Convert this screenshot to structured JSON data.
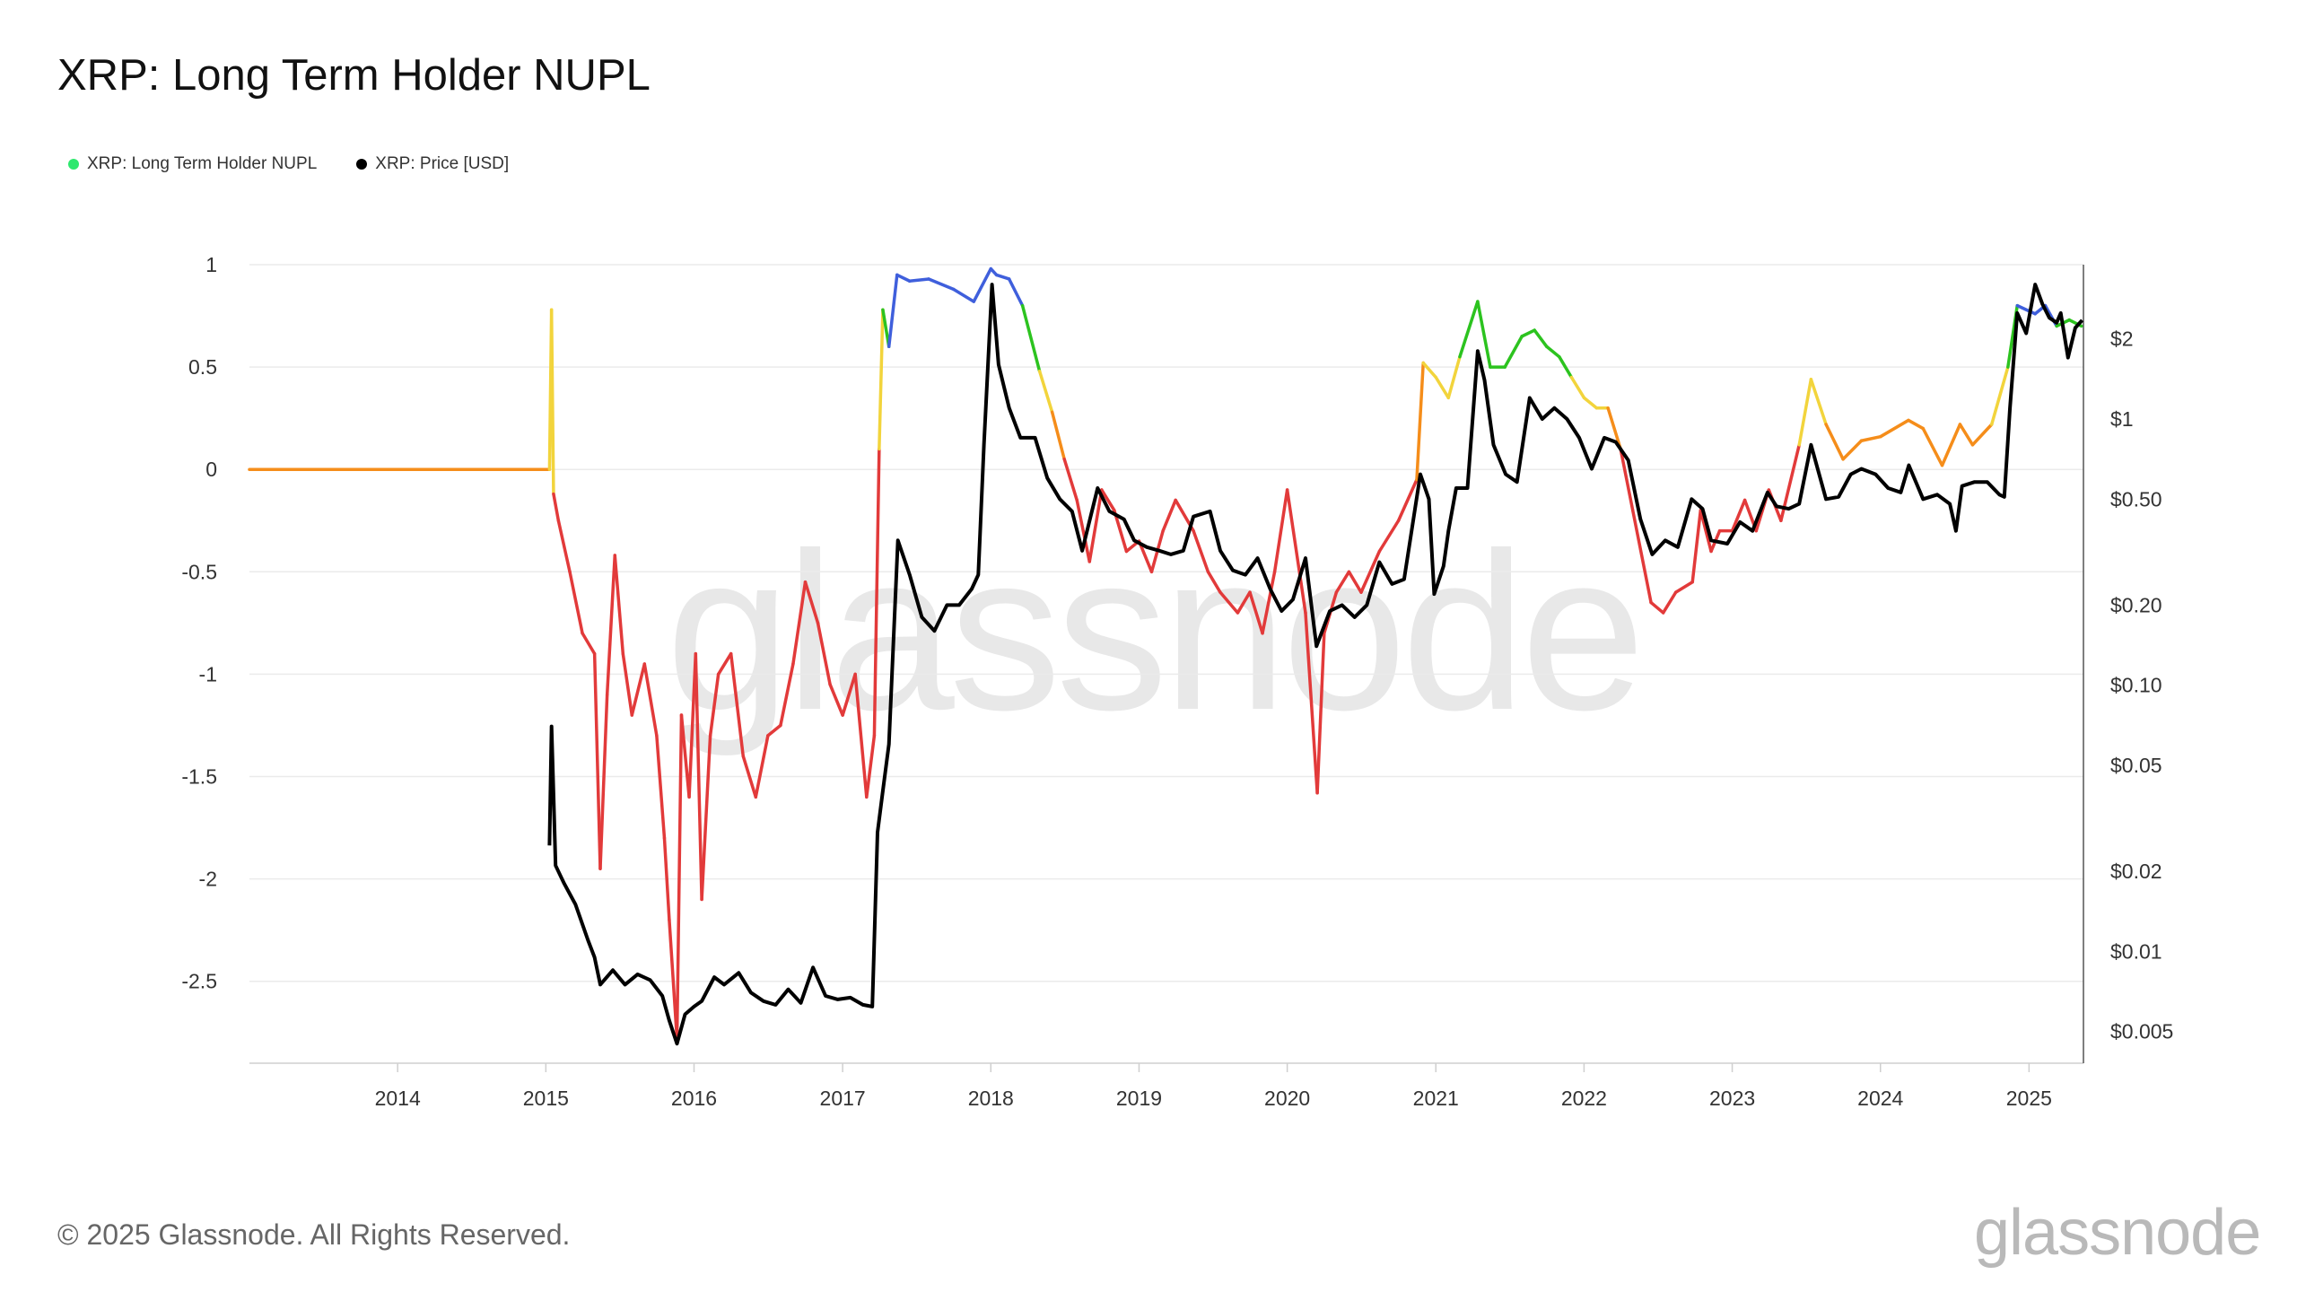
{
  "title": "XRP: Long Term Holder NUPL",
  "footer": {
    "copyright": "© 2025 Glassnode. All Rights Reserved.",
    "brand": "glassnode",
    "watermark": "glassnode"
  },
  "chart_data": {
    "type": "line",
    "title": "XRP: Long Term Holder NUPL",
    "legend": {
      "position": "top-left",
      "entries": [
        {
          "label": "XRP: Long Term Holder NUPL",
          "color": "#2ee86e"
        },
        {
          "label": "XRP: Price [USD]",
          "color": "#000000"
        }
      ]
    },
    "grid": true,
    "x_axis": {
      "type": "date",
      "range": [
        "2013-01-01",
        "2025-05-15"
      ],
      "ticks": [
        "2014",
        "2015",
        "2016",
        "2017",
        "2018",
        "2019",
        "2020",
        "2021",
        "2022",
        "2023",
        "2024",
        "2025"
      ]
    },
    "y_left": {
      "range": [
        -2.9,
        1.0
      ],
      "ticks": [
        1,
        0.5,
        0,
        -0.5,
        -1,
        -1.5,
        -2,
        -2.5
      ],
      "tick_labels": [
        "1",
        "0.5",
        "0",
        "-0.5",
        "-1",
        "-1.5",
        "-2",
        "-2.5"
      ]
    },
    "y_right": {
      "scale": "log",
      "range": [
        0.0038,
        3.8
      ],
      "ticks": [
        2,
        1,
        0.5,
        0.2,
        0.1,
        0.05,
        0.02,
        0.01,
        0.005
      ],
      "tick_labels": [
        "$2",
        "$1",
        "$0.50",
        "$0.20",
        "$0.10",
        "$0.05",
        "$0.02",
        "$0.01",
        "$0.005"
      ]
    },
    "nupl_color_bands": [
      {
        "min": 0.75,
        "color": "#3f5fdc"
      },
      {
        "min": 0.5,
        "color": "#2cc31f"
      },
      {
        "min": 0.25,
        "color": "#f2d43c"
      },
      {
        "min": 0.0,
        "color": "#f58d1a"
      },
      {
        "min": -99,
        "color": "#e23a3a"
      }
    ],
    "series": [
      {
        "name": "XRP: Long Term Holder NUPL",
        "axis": "left",
        "x": [
          "2013-01-01",
          "2014-06-01",
          "2015-01-10",
          "2015-01-15",
          "2015-01-20",
          "2015-02-01",
          "2015-03-01",
          "2015-04-01",
          "2015-05-01",
          "2015-05-15",
          "2015-06-01",
          "2015-06-20",
          "2015-07-10",
          "2015-08-01",
          "2015-09-01",
          "2015-10-01",
          "2015-10-20",
          "2015-11-01",
          "2015-11-20",
          "2015-12-01",
          "2015-12-20",
          "2016-01-05",
          "2016-01-20",
          "2016-02-10",
          "2016-03-01",
          "2016-04-01",
          "2016-05-01",
          "2016-06-01",
          "2016-07-01",
          "2016-08-01",
          "2016-09-01",
          "2016-10-01",
          "2016-11-01",
          "2016-12-01",
          "2017-01-01",
          "2017-02-01",
          "2017-03-01",
          "2017-03-20",
          "2017-04-01",
          "2017-04-10",
          "2017-04-25",
          "2017-05-15",
          "2017-06-15",
          "2017-08-01",
          "2017-10-01",
          "2017-11-20",
          "2018-01-01",
          "2018-01-15",
          "2018-02-15",
          "2018-03-20",
          "2018-05-01",
          "2018-06-01",
          "2018-07-01",
          "2018-08-01",
          "2018-09-01",
          "2018-10-01",
          "2018-11-01",
          "2018-12-01",
          "2019-01-01",
          "2019-02-01",
          "2019-03-01",
          "2019-04-01",
          "2019-05-15",
          "2019-06-20",
          "2019-07-20",
          "2019-09-01",
          "2019-10-01",
          "2019-11-01",
          "2019-12-01",
          "2020-01-01",
          "2020-02-15",
          "2020-03-15",
          "2020-04-01",
          "2020-05-01",
          "2020-06-01",
          "2020-07-01",
          "2020-08-15",
          "2020-10-01",
          "2020-11-15",
          "2020-12-01",
          "2021-01-01",
          "2021-02-01",
          "2021-03-01",
          "2021-04-14",
          "2021-05-15",
          "2021-06-20",
          "2021-08-01",
          "2021-09-01",
          "2021-10-01",
          "2021-11-01",
          "2021-12-01",
          "2022-01-01",
          "2022-02-01",
          "2022-03-01",
          "2022-04-01",
          "2022-05-01",
          "2022-06-15",
          "2022-07-15",
          "2022-08-15",
          "2022-09-25",
          "2022-10-15",
          "2022-11-10",
          "2022-12-01",
          "2023-01-01",
          "2023-02-01",
          "2023-03-01",
          "2023-04-01",
          "2023-05-01",
          "2023-06-15",
          "2023-07-14",
          "2023-08-20",
          "2023-10-01",
          "2023-11-15",
          "2024-01-01",
          "2024-03-10",
          "2024-04-15",
          "2024-06-01",
          "2024-07-15",
          "2024-08-15",
          "2024-10-01",
          "2024-11-10",
          "2024-12-03",
          "2025-01-16",
          "2025-02-10",
          "2025-03-10",
          "2025-04-10",
          "2025-05-10"
        ],
        "values": [
          0,
          0,
          0,
          0.78,
          -0.12,
          -0.25,
          -0.5,
          -0.8,
          -0.9,
          -1.95,
          -1.1,
          -0.42,
          -0.9,
          -1.2,
          -0.95,
          -1.3,
          -1.8,
          -2.2,
          -2.78,
          -1.2,
          -1.6,
          -0.9,
          -2.1,
          -1.3,
          -1.0,
          -0.9,
          -1.4,
          -1.6,
          -1.3,
          -1.25,
          -0.95,
          -0.55,
          -0.75,
          -1.05,
          -1.2,
          -1.0,
          -1.6,
          -1.3,
          0.1,
          0.78,
          0.6,
          0.95,
          0.92,
          0.93,
          0.88,
          0.82,
          0.98,
          0.95,
          0.93,
          0.8,
          0.48,
          0.28,
          0.05,
          -0.15,
          -0.45,
          -0.1,
          -0.2,
          -0.4,
          -0.35,
          -0.5,
          -0.3,
          -0.15,
          -0.3,
          -0.5,
          -0.6,
          -0.7,
          -0.6,
          -0.8,
          -0.5,
          -0.1,
          -0.7,
          -1.58,
          -0.8,
          -0.6,
          -0.5,
          -0.6,
          -0.4,
          -0.25,
          -0.05,
          0.52,
          0.45,
          0.35,
          0.55,
          0.82,
          0.5,
          0.5,
          0.65,
          0.68,
          0.6,
          0.55,
          0.45,
          0.35,
          0.3,
          0.3,
          0.1,
          -0.2,
          -0.65,
          -0.7,
          -0.6,
          -0.55,
          -0.2,
          -0.4,
          -0.3,
          -0.3,
          -0.15,
          -0.3,
          -0.1,
          -0.25,
          0.12,
          0.44,
          0.22,
          0.05,
          0.14,
          0.16,
          0.24,
          0.2,
          0.02,
          0.22,
          0.12,
          0.22,
          0.5,
          0.8,
          0.76,
          0.8,
          0.7,
          0.73,
          0.7
        ]
      },
      {
        "name": "XRP: Price [USD]",
        "axis": "right",
        "x": [
          "2015-01-10",
          "2015-01-15",
          "2015-01-25",
          "2015-02-15",
          "2015-03-15",
          "2015-04-15",
          "2015-05-01",
          "2015-05-15",
          "2015-06-15",
          "2015-07-15",
          "2015-08-15",
          "2015-09-15",
          "2015-10-15",
          "2015-11-01",
          "2015-11-20",
          "2015-12-10",
          "2016-01-01",
          "2016-01-20",
          "2016-02-20",
          "2016-03-15",
          "2016-04-20",
          "2016-05-20",
          "2016-06-20",
          "2016-07-20",
          "2016-08-20",
          "2016-09-20",
          "2016-10-20",
          "2016-11-20",
          "2016-12-20",
          "2017-01-20",
          "2017-02-20",
          "2017-03-15",
          "2017-03-28",
          "2017-04-10",
          "2017-04-25",
          "2017-05-17",
          "2017-06-15",
          "2017-07-15",
          "2017-08-15",
          "2017-09-15",
          "2017-10-15",
          "2017-11-15",
          "2017-12-01",
          "2017-12-15",
          "2018-01-04",
          "2018-01-20",
          "2018-02-15",
          "2018-03-15",
          "2018-04-20",
          "2018-05-20",
          "2018-06-20",
          "2018-07-20",
          "2018-08-14",
          "2018-09-21",
          "2018-10-20",
          "2018-11-25",
          "2018-12-20",
          "2019-01-20",
          "2019-02-20",
          "2019-03-20",
          "2019-04-20",
          "2019-05-15",
          "2019-06-25",
          "2019-07-20",
          "2019-08-20",
          "2019-09-20",
          "2019-10-20",
          "2019-11-20",
          "2019-12-18",
          "2020-01-15",
          "2020-02-15",
          "2020-03-13",
          "2020-04-15",
          "2020-05-15",
          "2020-06-15",
          "2020-07-15",
          "2020-08-15",
          "2020-09-15",
          "2020-10-15",
          "2020-11-24",
          "2020-12-15",
          "2020-12-28",
          "2021-01-20",
          "2021-02-01",
          "2021-02-20",
          "2021-03-20",
          "2021-04-14",
          "2021-05-01",
          "2021-05-23",
          "2021-06-22",
          "2021-07-20",
          "2021-08-20",
          "2021-09-20",
          "2021-10-20",
          "2021-11-20",
          "2021-12-20",
          "2022-01-20",
          "2022-02-20",
          "2022-03-20",
          "2022-04-20",
          "2022-05-20",
          "2022-06-18",
          "2022-07-20",
          "2022-08-20",
          "2022-09-23",
          "2022-10-20",
          "2022-11-10",
          "2022-12-20",
          "2023-01-20",
          "2023-02-20",
          "2023-03-29",
          "2023-04-20",
          "2023-05-20",
          "2023-06-15",
          "2023-07-14",
          "2023-08-20",
          "2023-09-20",
          "2023-10-20",
          "2023-11-15",
          "2023-12-20",
          "2024-01-20",
          "2024-02-20",
          "2024-03-11",
          "2024-04-15",
          "2024-05-20",
          "2024-06-20",
          "2024-07-05",
          "2024-07-20",
          "2024-08-20",
          "2024-09-20",
          "2024-10-20",
          "2024-11-01",
          "2024-11-15",
          "2024-12-03",
          "2024-12-25",
          "2025-01-16",
          "2025-02-03",
          "2025-02-20",
          "2025-03-10",
          "2025-03-20",
          "2025-04-07",
          "2025-04-25",
          "2025-05-12"
        ],
        "values": [
          0.025,
          0.07,
          0.021,
          0.018,
          0.015,
          0.011,
          0.0095,
          0.0075,
          0.0085,
          0.0075,
          0.0082,
          0.0078,
          0.0068,
          0.0055,
          0.0045,
          0.0058,
          0.0062,
          0.0065,
          0.008,
          0.0075,
          0.0083,
          0.007,
          0.0065,
          0.0063,
          0.0072,
          0.0064,
          0.0087,
          0.0068,
          0.0066,
          0.0067,
          0.0063,
          0.0062,
          0.028,
          0.04,
          0.06,
          0.35,
          0.26,
          0.18,
          0.16,
          0.2,
          0.2,
          0.23,
          0.26,
          0.8,
          3.2,
          1.6,
          1.1,
          0.85,
          0.85,
          0.6,
          0.5,
          0.45,
          0.32,
          0.55,
          0.45,
          0.42,
          0.35,
          0.33,
          0.32,
          0.31,
          0.32,
          0.43,
          0.45,
          0.32,
          0.27,
          0.26,
          0.3,
          0.23,
          0.19,
          0.21,
          0.3,
          0.14,
          0.19,
          0.2,
          0.18,
          0.2,
          0.29,
          0.24,
          0.25,
          0.62,
          0.5,
          0.22,
          0.28,
          0.38,
          0.55,
          0.55,
          1.8,
          1.4,
          0.8,
          0.62,
          0.58,
          1.2,
          1.0,
          1.1,
          1.0,
          0.85,
          0.65,
          0.85,
          0.82,
          0.7,
          0.42,
          0.31,
          0.35,
          0.33,
          0.5,
          0.46,
          0.35,
          0.34,
          0.41,
          0.38,
          0.53,
          0.47,
          0.46,
          0.48,
          0.8,
          0.5,
          0.51,
          0.62,
          0.65,
          0.62,
          0.55,
          0.53,
          0.67,
          0.5,
          0.52,
          0.48,
          0.38,
          0.56,
          0.58,
          0.58,
          0.52,
          0.51,
          1.1,
          2.5,
          2.1,
          3.2,
          2.7,
          2.4,
          2.3,
          2.5,
          1.7,
          2.2,
          2.35
        ]
      }
    ]
  }
}
